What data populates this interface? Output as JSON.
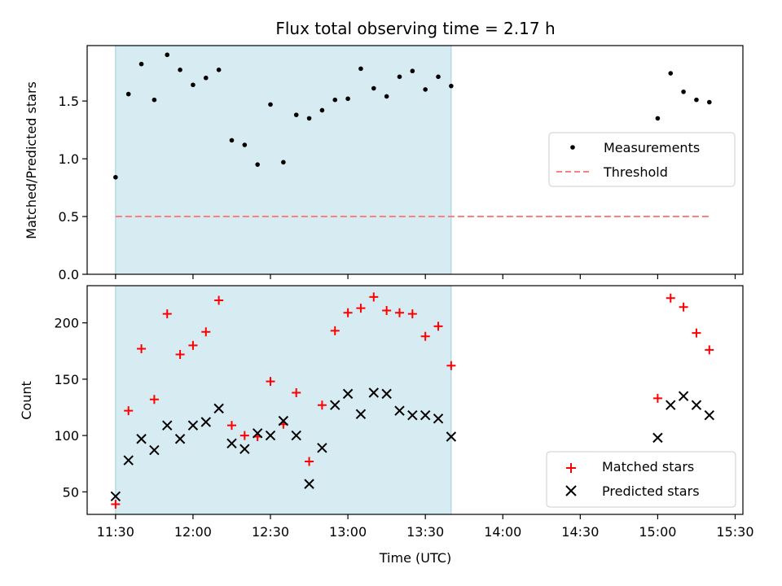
{
  "chart_data": [
    {
      "type": "scatter",
      "title": "Flux total observing time = 2.17 h",
      "ylabel": "Matched/Predicted stars",
      "ylim": [
        0,
        1.98
      ],
      "yticks": [
        0.0,
        0.5,
        1.0,
        1.5
      ],
      "ytick_labels": [
        "0.0",
        "0.5",
        "1.0",
        "1.5"
      ],
      "xlim": [
        "11:19",
        "15:33"
      ],
      "xticks": [
        "11:30",
        "12:00",
        "12:30",
        "13:00",
        "13:30",
        "14:00",
        "14:30",
        "15:00",
        "15:30"
      ],
      "shaded_span": {
        "start": "11:30",
        "end": "13:40",
        "color": "#add8e6"
      },
      "legend_position": "center-right",
      "series": [
        {
          "name": "Measurements",
          "marker": "dot",
          "color": "#000000",
          "points": [
            [
              "11:30",
              0.84
            ],
            [
              "11:35",
              1.56
            ],
            [
              "11:40",
              1.82
            ],
            [
              "11:45",
              1.51
            ],
            [
              "11:50",
              1.9
            ],
            [
              "11:55",
              1.77
            ],
            [
              "12:00",
              1.64
            ],
            [
              "12:05",
              1.7
            ],
            [
              "12:10",
              1.77
            ],
            [
              "12:15",
              1.16
            ],
            [
              "12:20",
              1.12
            ],
            [
              "12:25",
              0.95
            ],
            [
              "12:30",
              1.47
            ],
            [
              "12:35",
              0.97
            ],
            [
              "12:40",
              1.38
            ],
            [
              "12:45",
              1.35
            ],
            [
              "12:50",
              1.42
            ],
            [
              "12:55",
              1.51
            ],
            [
              "13:00",
              1.52
            ],
            [
              "13:05",
              1.78
            ],
            [
              "13:10",
              1.61
            ],
            [
              "13:15",
              1.54
            ],
            [
              "13:20",
              1.71
            ],
            [
              "13:25",
              1.76
            ],
            [
              "13:30",
              1.6
            ],
            [
              "13:35",
              1.71
            ],
            [
              "13:40",
              1.63
            ],
            [
              "15:00",
              1.35
            ],
            [
              "15:05",
              1.74
            ],
            [
              "15:10",
              1.58
            ],
            [
              "15:15",
              1.51
            ],
            [
              "15:20",
              1.49
            ]
          ]
        },
        {
          "name": "Threshold",
          "type": "line",
          "style": "dashed",
          "color": "#ff7f7f",
          "points": [
            [
              "11:30",
              0.5
            ],
            [
              "15:20",
              0.5
            ]
          ]
        }
      ]
    },
    {
      "type": "scatter",
      "xlabel": "Time (UTC)",
      "ylabel": "Count",
      "ylim": [
        30,
        233
      ],
      "yticks": [
        50,
        100,
        150,
        200
      ],
      "ytick_labels": [
        "50",
        "100",
        "150",
        "200"
      ],
      "xlim": [
        "11:19",
        "15:33"
      ],
      "xticks": [
        "11:30",
        "12:00",
        "12:30",
        "13:00",
        "13:30",
        "14:00",
        "14:30",
        "15:00",
        "15:30"
      ],
      "xtick_labels": [
        "11:30",
        "12:00",
        "12:30",
        "13:00",
        "13:30",
        "14:00",
        "14:30",
        "15:00",
        "15:30"
      ],
      "shaded_span": {
        "start": "11:30",
        "end": "13:40",
        "color": "#add8e6"
      },
      "legend_position": "lower-right",
      "series": [
        {
          "name": "Matched stars",
          "marker": "plus",
          "color": "#ff0000",
          "points": [
            [
              "11:30",
              39
            ],
            [
              "11:35",
              122
            ],
            [
              "11:40",
              177
            ],
            [
              "11:45",
              132
            ],
            [
              "11:50",
              208
            ],
            [
              "11:55",
              172
            ],
            [
              "12:00",
              180
            ],
            [
              "12:05",
              192
            ],
            [
              "12:10",
              220
            ],
            [
              "12:15",
              109
            ],
            [
              "12:20",
              100
            ],
            [
              "12:25",
              99
            ],
            [
              "12:30",
              148
            ],
            [
              "12:35",
              110
            ],
            [
              "12:40",
              138
            ],
            [
              "12:45",
              77
            ],
            [
              "12:50",
              127
            ],
            [
              "12:55",
              193
            ],
            [
              "13:00",
              209
            ],
            [
              "13:05",
              213
            ],
            [
              "13:10",
              223
            ],
            [
              "13:15",
              211
            ],
            [
              "13:20",
              209
            ],
            [
              "13:25",
              208
            ],
            [
              "13:30",
              188
            ],
            [
              "13:35",
              197
            ],
            [
              "13:40",
              162
            ],
            [
              "15:00",
              133
            ],
            [
              "15:05",
              222
            ],
            [
              "15:10",
              214
            ],
            [
              "15:15",
              191
            ],
            [
              "15:20",
              176
            ]
          ]
        },
        {
          "name": "Predicted stars",
          "marker": "x",
          "color": "#000000",
          "points": [
            [
              "11:30",
              46
            ],
            [
              "11:35",
              78
            ],
            [
              "11:40",
              97
            ],
            [
              "11:45",
              87
            ],
            [
              "11:50",
              109
            ],
            [
              "11:55",
              97
            ],
            [
              "12:00",
              109
            ],
            [
              "12:05",
              112
            ],
            [
              "12:10",
              124
            ],
            [
              "12:15",
              93
            ],
            [
              "12:20",
              88
            ],
            [
              "12:25",
              102
            ],
            [
              "12:30",
              100
            ],
            [
              "12:35",
              113
            ],
            [
              "12:40",
              100
            ],
            [
              "12:45",
              57
            ],
            [
              "12:50",
              89
            ],
            [
              "12:55",
              127
            ],
            [
              "13:00",
              137
            ],
            [
              "13:05",
              119
            ],
            [
              "13:10",
              138
            ],
            [
              "13:15",
              137
            ],
            [
              "13:20",
              122
            ],
            [
              "13:25",
              118
            ],
            [
              "13:30",
              118
            ],
            [
              "13:35",
              115
            ],
            [
              "13:40",
              99
            ],
            [
              "15:00",
              98
            ],
            [
              "15:05",
              127
            ],
            [
              "15:10",
              135
            ],
            [
              "15:15",
              127
            ],
            [
              "15:20",
              118
            ]
          ]
        }
      ]
    }
  ]
}
